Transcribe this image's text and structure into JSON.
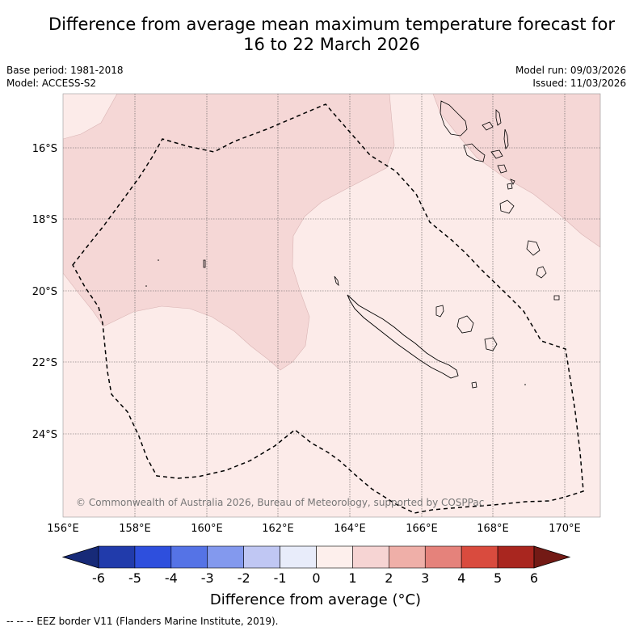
{
  "title": {
    "line1": "Difference from average mean maximum temperature forecast for",
    "line2": "16 to 22 March 2026"
  },
  "meta": {
    "base_period": "Base period: 1981-2018",
    "model": "Model: ACCESS-S2",
    "model_run": "Model run: 09/03/2026",
    "issued": "Issued: 11/03/2026"
  },
  "map": {
    "lat_labels": [
      "16°S",
      "18°S",
      "20°S",
      "22°S",
      "24°S"
    ],
    "lon_labels": [
      "156°E",
      "158°E",
      "160°E",
      "162°E",
      "164°E",
      "166°E",
      "168°E",
      "170°E"
    ],
    "copyright": "© Commonwealth of Australia 2026, Bureau of Meteorology, supported by COSPPac",
    "regions": [
      {
        "category": "0 to 1",
        "color": "#fcebe9"
      },
      {
        "category": "1 to 2",
        "color": "#f5d7d6"
      }
    ]
  },
  "colorbar": {
    "ticks": [
      "-6",
      "-5",
      "-4",
      "-3",
      "-2",
      "-1",
      "0",
      "1",
      "2",
      "3",
      "4",
      "5",
      "6"
    ],
    "colors": [
      "#213bab",
      "#2e4fdd",
      "#5573e6",
      "#8399ee",
      "#c0c7f3",
      "#e8ecfa",
      "#fdefec",
      "#f6d4d3",
      "#efafa8",
      "#e5827b",
      "#d94b3e",
      "#a9261f"
    ],
    "extend_low": "#172a78",
    "extend_high": "#731a15",
    "label": "Difference from average (°C)"
  },
  "footer": "--  --  -- EEZ border V11 (Flanders Marine Institute, 2019)."
}
